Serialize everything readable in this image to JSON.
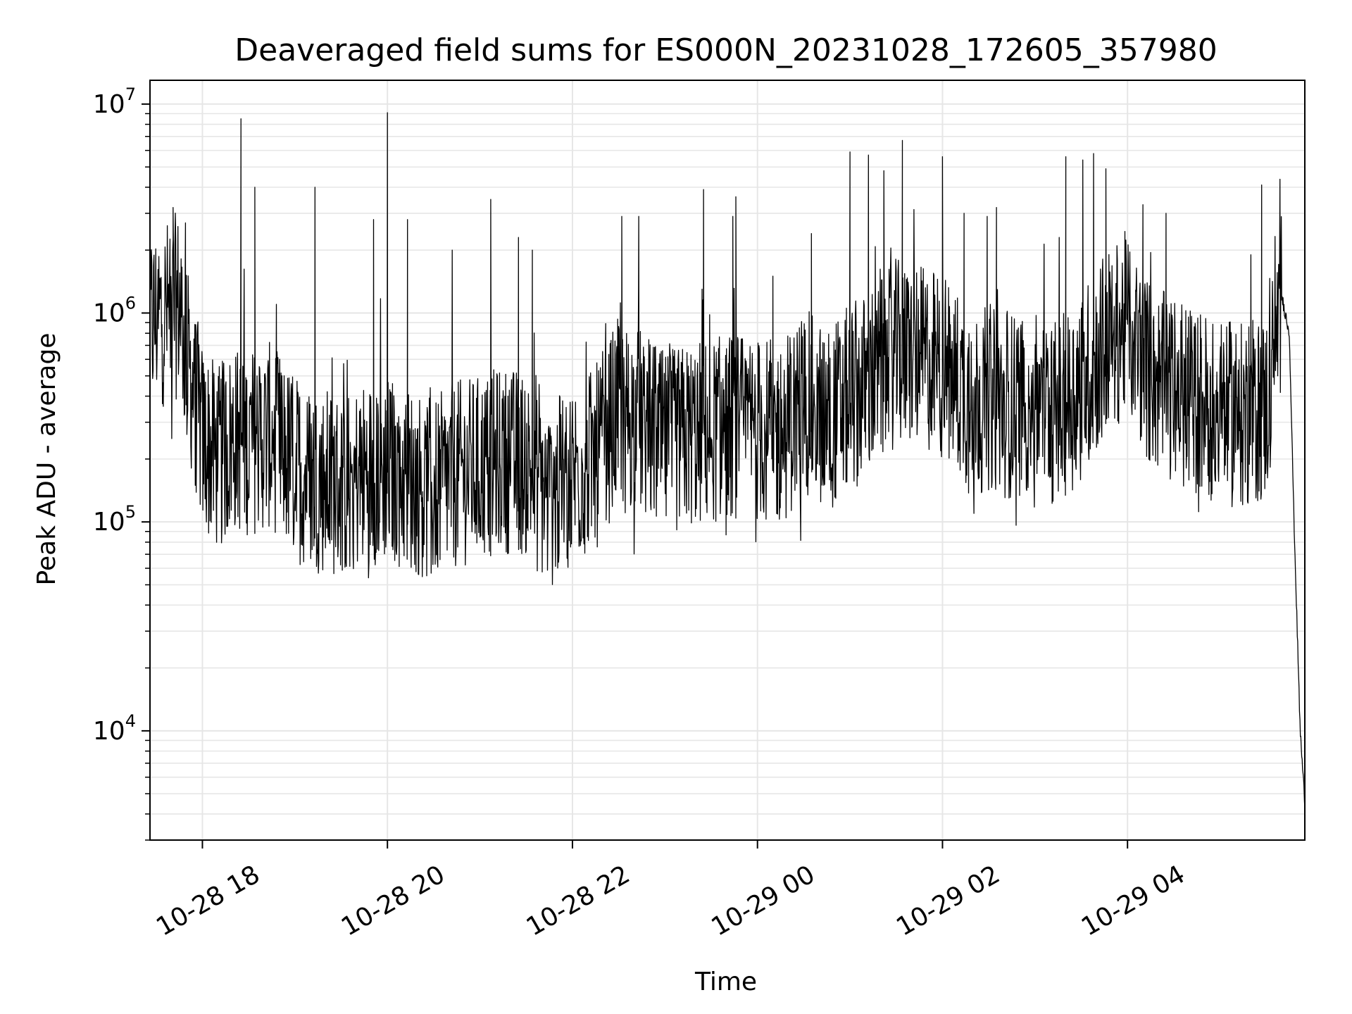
{
  "chart_data": {
    "type": "line",
    "title": "Deaveraged field sums for ES000N_20231028_172605_357980",
    "xlabel": "Time",
    "ylabel": "Peak ADU - average",
    "yscale": "log",
    "xlim": [
      "2023-10-28 17:26",
      "2023-10-29 05:55"
    ],
    "ylim": [
      3000,
      13000000
    ],
    "x_ticks": [
      {
        "value": "2023-10-28 18:00",
        "label": "10-28 18"
      },
      {
        "value": "2023-10-28 20:00",
        "label": "10-28 20"
      },
      {
        "value": "2023-10-28 22:00",
        "label": "10-28 22"
      },
      {
        "value": "2023-10-29 00:00",
        "label": "10-29 00"
      },
      {
        "value": "2023-10-29 02:00",
        "label": "10-29 02"
      },
      {
        "value": "2023-10-29 04:00",
        "label": "10-29 04"
      }
    ],
    "y_ticks": [
      {
        "value": 10000,
        "base": "10",
        "exp": "4"
      },
      {
        "value": 100000,
        "base": "10",
        "exp": "5"
      },
      {
        "value": 1000000,
        "base": "10",
        "exp": "6"
      },
      {
        "value": 10000000,
        "base": "10",
        "exp": "7"
      }
    ],
    "grid": true,
    "line_color": "#000000",
    "grid_color": "#e6e6e6",
    "series": [
      {
        "x": [
          "2023-10-28 17:26",
          "2023-10-28 17:35",
          "2023-10-28 17:45",
          "2023-10-28 17:50",
          "2023-10-28 17:55",
          "2023-10-28 18:00",
          "2023-10-28 18:10",
          "2023-10-28 18:15",
          "2023-10-28 18:20",
          "2023-10-28 18:30",
          "2023-10-28 18:45",
          "2023-10-28 19:00",
          "2023-10-28 19:15",
          "2023-10-28 19:30",
          "2023-10-28 19:45",
          "2023-10-28 20:00",
          "2023-10-28 20:15",
          "2023-10-28 20:30",
          "2023-10-28 20:45",
          "2023-10-28 21:00",
          "2023-10-28 21:15",
          "2023-10-28 21:30",
          "2023-10-28 21:45",
          "2023-10-28 22:00",
          "2023-10-28 22:15",
          "2023-10-28 22:30",
          "2023-10-28 22:45",
          "2023-10-28 23:00",
          "2023-10-28 23:15",
          "2023-10-28 23:30",
          "2023-10-28 23:45",
          "2023-10-29 00:00",
          "2023-10-29 00:15",
          "2023-10-29 00:30",
          "2023-10-29 00:45",
          "2023-10-29 01:00",
          "2023-10-29 01:15",
          "2023-10-29 01:30",
          "2023-10-29 01:45",
          "2023-10-29 02:00",
          "2023-10-29 02:15",
          "2023-10-29 02:30",
          "2023-10-29 02:45",
          "2023-10-29 03:00",
          "2023-10-29 03:15",
          "2023-10-29 03:30",
          "2023-10-29 03:45",
          "2023-10-29 04:00",
          "2023-10-29 04:15",
          "2023-10-29 04:30",
          "2023-10-29 04:45",
          "2023-10-29 05:00",
          "2023-10-29 05:15",
          "2023-10-29 05:30",
          "2023-10-29 05:40",
          "2023-10-29 05:45",
          "2023-10-29 05:48",
          "2023-10-29 05:52",
          "2023-10-29 05:55"
        ],
        "y": [
          900000,
          1000000,
          1100000,
          600000,
          400000,
          250000,
          200000,
          220000,
          250000,
          240000,
          260000,
          180000,
          160000,
          150000,
          170000,
          180000,
          160000,
          140000,
          170000,
          180000,
          200000,
          190000,
          130000,
          170000,
          200000,
          340000,
          300000,
          230000,
          260000,
          270000,
          290000,
          280000,
          260000,
          380000,
          310000,
          390000,
          480000,
          650000,
          620000,
          560000,
          420000,
          380000,
          360000,
          380000,
          330000,
          450000,
          700000,
          900000,
          500000,
          420000,
          380000,
          340000,
          320000,
          350000,
          1200000,
          800000,
          100000,
          10000,
          4500
        ]
      }
    ],
    "spikes": [
      {
        "x": "2023-10-28 17:41",
        "y": 3200000
      },
      {
        "x": "2023-10-28 17:49",
        "y": 2700000
      },
      {
        "x": "2023-10-28 18:25",
        "y": 8500000
      },
      {
        "x": "2023-10-28 18:34",
        "y": 4000000
      },
      {
        "x": "2023-10-28 18:48",
        "y": 1100000
      },
      {
        "x": "2023-10-28 19:13",
        "y": 4000000
      },
      {
        "x": "2023-10-28 19:51",
        "y": 2800000
      },
      {
        "x": "2023-10-28 20:00",
        "y": 9100000
      },
      {
        "x": "2023-10-28 20:13",
        "y": 2800000
      },
      {
        "x": "2023-10-28 20:42",
        "y": 2000000
      },
      {
        "x": "2023-10-28 21:07",
        "y": 3500000
      },
      {
        "x": "2023-10-28 21:25",
        "y": 2300000
      },
      {
        "x": "2023-10-28 21:34",
        "y": 2000000
      },
      {
        "x": "2023-10-28 22:32",
        "y": 2900000
      },
      {
        "x": "2023-10-28 22:43",
        "y": 2900000
      },
      {
        "x": "2023-10-28 23:25",
        "y": 3900000
      },
      {
        "x": "2023-10-28 23:44",
        "y": 2900000
      },
      {
        "x": "2023-10-28 23:46",
        "y": 3600000
      },
      {
        "x": "2023-10-29 00:10",
        "y": 1500000
      },
      {
        "x": "2023-10-29 00:35",
        "y": 2400000
      },
      {
        "x": "2023-10-29 01:00",
        "y": 5900000
      },
      {
        "x": "2023-10-29 01:12",
        "y": 5700000
      },
      {
        "x": "2023-10-29 01:22",
        "y": 4800000
      },
      {
        "x": "2023-10-29 01:34",
        "y": 6700000
      },
      {
        "x": "2023-10-29 02:00",
        "y": 5600000
      },
      {
        "x": "2023-10-29 02:14",
        "y": 3000000
      },
      {
        "x": "2023-10-29 02:29",
        "y": 2900000
      },
      {
        "x": "2023-10-29 02:35",
        "y": 3200000
      },
      {
        "x": "2023-10-29 03:20",
        "y": 5600000
      },
      {
        "x": "2023-10-29 03:31",
        "y": 5400000
      },
      {
        "x": "2023-10-29 03:38",
        "y": 5800000
      },
      {
        "x": "2023-10-29 03:46",
        "y": 4900000
      },
      {
        "x": "2023-10-29 04:10",
        "y": 3300000
      },
      {
        "x": "2023-10-29 04:25",
        "y": 3000000
      },
      {
        "x": "2023-10-29 05:20",
        "y": 1900000
      },
      {
        "x": "2023-10-29 05:27",
        "y": 4100000
      }
    ]
  }
}
